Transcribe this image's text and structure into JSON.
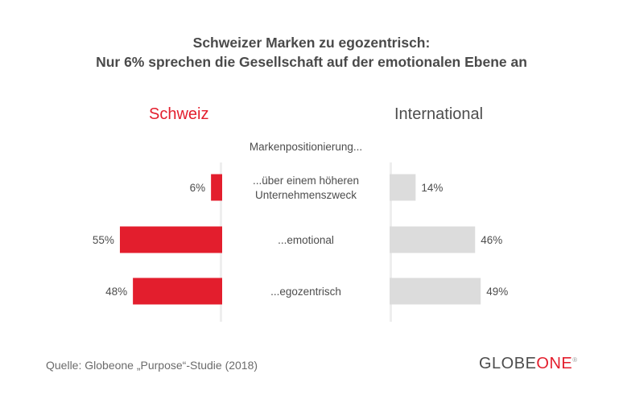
{
  "title_line1": "Schweizer Marken zu egozentrisch:",
  "title_line2": "Nur 6% sprechen die Gesellschaft auf der emotionalen Ebene an",
  "left_group": "Schweiz",
  "right_group": "International",
  "subtitle": "Markenpositionierung...",
  "colors": {
    "schweiz": "#e31e2d",
    "international": "#dcdcdc",
    "text": "#4d4d4d"
  },
  "chart_data": {
    "type": "bar",
    "categories": [
      "...über einem höheren Unternehmenszweck",
      "...emotional",
      "...egozentrisch"
    ],
    "category_lines": [
      [
        "...über einem höheren",
        "Unternehmenszweck"
      ],
      [
        "...emotional"
      ],
      [
        "...egozentrisch"
      ]
    ],
    "series": [
      {
        "name": "Schweiz",
        "values": [
          6,
          55,
          48
        ]
      },
      {
        "name": "International",
        "values": [
          14,
          46,
          49
        ]
      }
    ],
    "unit": "%",
    "xlim": [
      0,
      60
    ],
    "legend": "top",
    "grid": false
  },
  "source": "Quelle: Globeone „Purpose“-Studie (2018)",
  "logo": {
    "part1": "GLOBE",
    "part2": "ONE",
    "mark": "®"
  }
}
